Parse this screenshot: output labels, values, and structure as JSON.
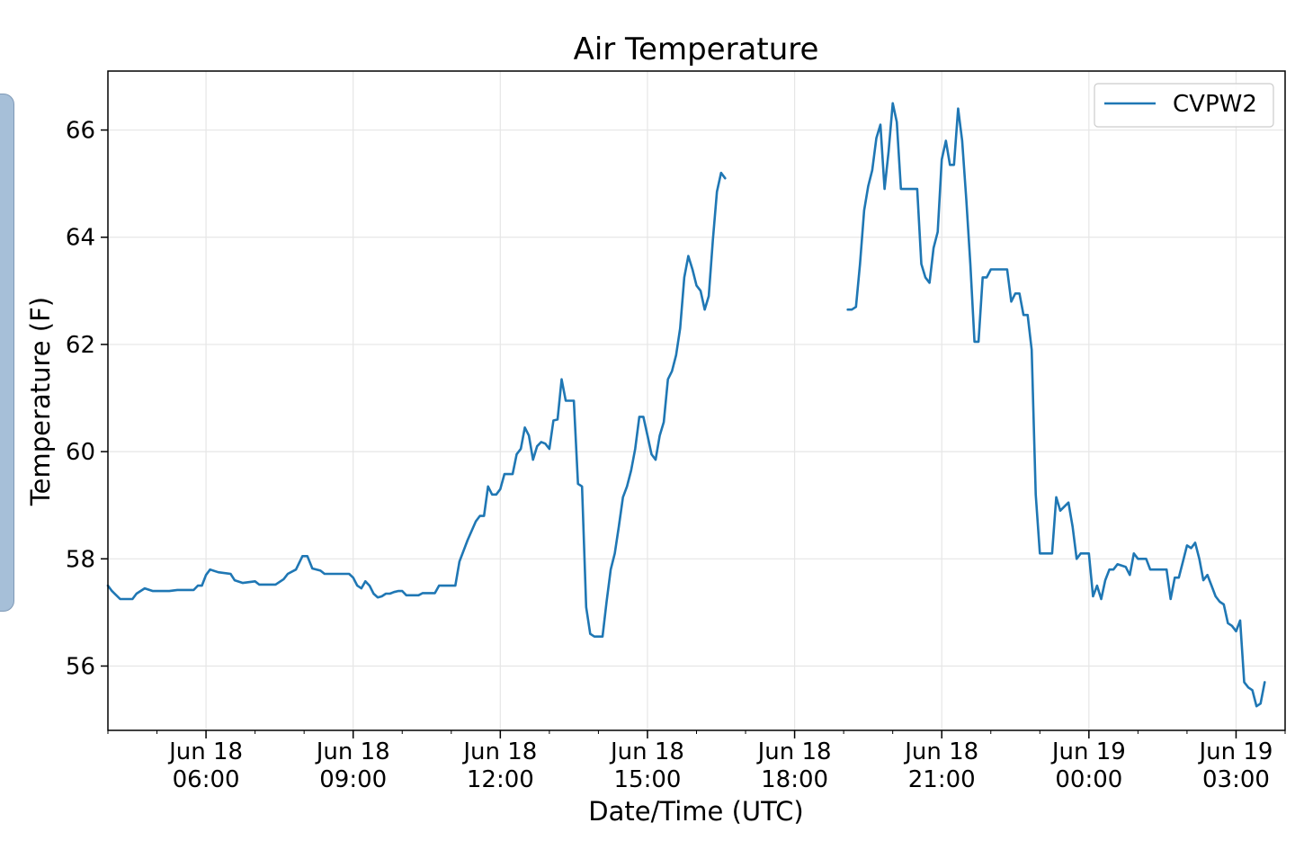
{
  "chart_data": {
    "type": "line",
    "title": "Air Temperature",
    "xlabel": "Date/Time (UTC)",
    "ylabel": "Temperature (F)",
    "x_range": [
      "2018-06-18T04:00",
      "2018-06-19T04:00"
    ],
    "ylim": [
      54.8,
      67.1
    ],
    "grid": true,
    "legend": {
      "position": "top-right",
      "entries": [
        "CVPW2"
      ]
    },
    "y_ticks": [
      "56",
      "58",
      "60",
      "62",
      "64",
      "66"
    ],
    "x_ticks": [
      {
        "line1": "Jun 18",
        "line2": "06:00"
      },
      {
        "line1": "Jun 18",
        "line2": "09:00"
      },
      {
        "line1": "Jun 18",
        "line2": "12:00"
      },
      {
        "line1": "Jun 18",
        "line2": "15:00"
      },
      {
        "line1": "Jun 18",
        "line2": "18:00"
      },
      {
        "line1": "Jun 18",
        "line2": "21:00"
      },
      {
        "line1": "Jun 19",
        "line2": "00:00"
      },
      {
        "line1": "Jun 19",
        "line2": "03:00"
      }
    ],
    "series": [
      {
        "name": "CVPW2",
        "color": "#1f77b4",
        "segments": [
          [
            [
              "2018-06-18T04:00",
              57.5
            ],
            [
              "2018-06-18T04:05",
              57.4
            ],
            [
              "2018-06-18T04:15",
              57.25
            ],
            [
              "2018-06-18T04:30",
              57.25
            ],
            [
              "2018-06-18T04:35",
              57.35
            ],
            [
              "2018-06-18T04:45",
              57.45
            ],
            [
              "2018-06-18T04:55",
              57.4
            ],
            [
              "2018-06-18T05:15",
              57.4
            ],
            [
              "2018-06-18T05:25",
              57.42
            ],
            [
              "2018-06-18T05:45",
              57.42
            ],
            [
              "2018-06-18T05:50",
              57.5
            ],
            [
              "2018-06-18T05:55",
              57.5
            ],
            [
              "2018-06-18T06:00",
              57.7
            ],
            [
              "2018-06-18T06:05",
              57.8
            ],
            [
              "2018-06-18T06:15",
              57.75
            ],
            [
              "2018-06-18T06:30",
              57.72
            ],
            [
              "2018-06-18T06:35",
              57.6
            ],
            [
              "2018-06-18T06:45",
              57.55
            ],
            [
              "2018-06-18T07:00",
              57.58
            ],
            [
              "2018-06-18T07:05",
              57.52
            ],
            [
              "2018-06-18T07:25",
              57.52
            ],
            [
              "2018-06-18T07:35",
              57.62
            ],
            [
              "2018-06-18T07:40",
              57.72
            ],
            [
              "2018-06-18T07:50",
              57.8
            ],
            [
              "2018-06-18T07:58",
              58.05
            ],
            [
              "2018-06-18T08:04",
              58.05
            ],
            [
              "2018-06-18T08:10",
              57.82
            ],
            [
              "2018-06-18T08:20",
              57.78
            ],
            [
              "2018-06-18T08:25",
              57.72
            ],
            [
              "2018-06-18T08:55",
              57.72
            ],
            [
              "2018-06-18T09:00",
              57.65
            ],
            [
              "2018-06-18T09:05",
              57.5
            ],
            [
              "2018-06-18T09:10",
              57.45
            ],
            [
              "2018-06-18T09:15",
              57.58
            ],
            [
              "2018-06-18T09:20",
              57.5
            ],
            [
              "2018-06-18T09:25",
              57.35
            ],
            [
              "2018-06-18T09:30",
              57.28
            ],
            [
              "2018-06-18T09:35",
              57.3
            ],
            [
              "2018-06-18T09:40",
              57.35
            ],
            [
              "2018-06-18T09:45",
              57.35
            ],
            [
              "2018-06-18T09:50",
              57.38
            ],
            [
              "2018-06-18T09:55",
              57.4
            ],
            [
              "2018-06-18T10:00",
              57.4
            ],
            [
              "2018-06-18T10:05",
              57.32
            ],
            [
              "2018-06-18T10:20",
              57.32
            ],
            [
              "2018-06-18T10:25",
              57.36
            ],
            [
              "2018-06-18T10:40",
              57.36
            ],
            [
              "2018-06-18T10:45",
              57.5
            ],
            [
              "2018-06-18T11:05",
              57.5
            ],
            [
              "2018-06-18T11:10",
              57.95
            ],
            [
              "2018-06-18T11:20",
              58.35
            ],
            [
              "2018-06-18T11:30",
              58.7
            ],
            [
              "2018-06-18T11:35",
              58.8
            ],
            [
              "2018-06-18T11:40",
              58.8
            ],
            [
              "2018-06-18T11:45",
              59.35
            ],
            [
              "2018-06-18T11:50",
              59.2
            ],
            [
              "2018-06-18T11:55",
              59.2
            ],
            [
              "2018-06-18T12:00",
              59.3
            ],
            [
              "2018-06-18T12:05",
              59.58
            ],
            [
              "2018-06-18T12:15",
              59.58
            ],
            [
              "2018-06-18T12:20",
              59.95
            ],
            [
              "2018-06-18T12:25",
              60.05
            ],
            [
              "2018-06-18T12:30",
              60.45
            ],
            [
              "2018-06-18T12:35",
              60.3
            ],
            [
              "2018-06-18T12:40",
              59.85
            ],
            [
              "2018-06-18T12:45",
              60.1
            ],
            [
              "2018-06-18T12:50",
              60.18
            ],
            [
              "2018-06-18T12:55",
              60.15
            ],
            [
              "2018-06-18T13:00",
              60.05
            ],
            [
              "2018-06-18T13:05",
              60.58
            ],
            [
              "2018-06-18T13:10",
              60.6
            ],
            [
              "2018-06-18T13:15",
              61.35
            ],
            [
              "2018-06-18T13:20",
              60.95
            ],
            [
              "2018-06-18T13:25",
              60.95
            ],
            [
              "2018-06-18T13:30",
              60.95
            ],
            [
              "2018-06-18T13:35",
              59.4
            ],
            [
              "2018-06-18T13:40",
              59.35
            ],
            [
              "2018-06-18T13:45",
              57.1
            ],
            [
              "2018-06-18T13:50",
              56.6
            ],
            [
              "2018-06-18T13:55",
              56.55
            ],
            [
              "2018-06-18T14:05",
              56.55
            ],
            [
              "2018-06-18T14:10",
              57.2
            ],
            [
              "2018-06-18T14:15",
              57.8
            ],
            [
              "2018-06-18T14:20",
              58.1
            ],
            [
              "2018-06-18T14:25",
              58.6
            ],
            [
              "2018-06-18T14:30",
              59.15
            ],
            [
              "2018-06-18T14:35",
              59.35
            ],
            [
              "2018-06-18T14:40",
              59.65
            ],
            [
              "2018-06-18T14:45",
              60.05
            ],
            [
              "2018-06-18T14:50",
              60.65
            ],
            [
              "2018-06-18T14:55",
              60.65
            ],
            [
              "2018-06-18T15:00",
              60.3
            ],
            [
              "2018-06-18T15:05",
              59.95
            ],
            [
              "2018-06-18T15:10",
              59.85
            ],
            [
              "2018-06-18T15:15",
              60.3
            ],
            [
              "2018-06-18T15:20",
              60.55
            ],
            [
              "2018-06-18T15:25",
              61.35
            ],
            [
              "2018-06-18T15:30",
              61.5
            ],
            [
              "2018-06-18T15:35",
              61.8
            ],
            [
              "2018-06-18T15:40",
              62.3
            ],
            [
              "2018-06-18T15:45",
              63.25
            ],
            [
              "2018-06-18T15:50",
              63.65
            ],
            [
              "2018-06-18T15:55",
              63.4
            ],
            [
              "2018-06-18T16:00",
              63.1
            ],
            [
              "2018-06-18T16:05",
              63.0
            ],
            [
              "2018-06-18T16:10",
              62.65
            ],
            [
              "2018-06-18T16:15",
              62.9
            ],
            [
              "2018-06-18T16:20",
              63.95
            ],
            [
              "2018-06-18T16:25",
              64.85
            ],
            [
              "2018-06-18T16:30",
              65.2
            ],
            [
              "2018-06-18T16:35",
              65.1
            ]
          ],
          [
            [
              "2018-06-18T19:05",
              62.65
            ],
            [
              "2018-06-18T19:10",
              62.65
            ],
            [
              "2018-06-18T19:15",
              62.7
            ],
            [
              "2018-06-18T19:20",
              63.5
            ],
            [
              "2018-06-18T19:25",
              64.5
            ],
            [
              "2018-06-18T19:30",
              64.95
            ],
            [
              "2018-06-18T19:35",
              65.25
            ],
            [
              "2018-06-18T19:40",
              65.85
            ],
            [
              "2018-06-18T19:45",
              66.1
            ],
            [
              "2018-06-18T19:50",
              64.9
            ],
            [
              "2018-06-18T19:55",
              65.6
            ],
            [
              "2018-06-18T20:00",
              66.5
            ],
            [
              "2018-06-18T20:05",
              66.15
            ],
            [
              "2018-06-18T20:10",
              64.9
            ],
            [
              "2018-06-18T20:30",
              64.9
            ],
            [
              "2018-06-18T20:35",
              63.5
            ],
            [
              "2018-06-18T20:40",
              63.25
            ],
            [
              "2018-06-18T20:45",
              63.15
            ],
            [
              "2018-06-18T20:50",
              63.8
            ],
            [
              "2018-06-18T20:55",
              64.1
            ],
            [
              "2018-06-18T21:00",
              65.45
            ],
            [
              "2018-06-18T21:05",
              65.8
            ],
            [
              "2018-06-18T21:10",
              65.35
            ],
            [
              "2018-06-18T21:15",
              65.35
            ],
            [
              "2018-06-18T21:20",
              66.4
            ],
            [
              "2018-06-18T21:25",
              65.8
            ],
            [
              "2018-06-18T21:30",
              64.7
            ],
            [
              "2018-06-18T21:35",
              63.5
            ],
            [
              "2018-06-18T21:40",
              62.05
            ],
            [
              "2018-06-18T21:45",
              62.05
            ],
            [
              "2018-06-18T21:50",
              63.25
            ],
            [
              "2018-06-18T21:55",
              63.25
            ],
            [
              "2018-06-18T22:00",
              63.4
            ],
            [
              "2018-06-18T22:20",
              63.4
            ],
            [
              "2018-06-18T22:25",
              62.8
            ],
            [
              "2018-06-18T22:30",
              62.95
            ],
            [
              "2018-06-18T22:35",
              62.95
            ],
            [
              "2018-06-18T22:40",
              62.55
            ],
            [
              "2018-06-18T22:45",
              62.55
            ],
            [
              "2018-06-18T22:50",
              61.9
            ],
            [
              "2018-06-18T22:55",
              59.2
            ],
            [
              "2018-06-18T23:00",
              58.1
            ],
            [
              "2018-06-18T23:15",
              58.1
            ],
            [
              "2018-06-18T23:20",
              59.15
            ],
            [
              "2018-06-18T23:25",
              58.9
            ],
            [
              "2018-06-18T23:35",
              59.05
            ],
            [
              "2018-06-18T23:40",
              58.6
            ],
            [
              "2018-06-18T23:45",
              58.0
            ],
            [
              "2018-06-18T23:50",
              58.1
            ],
            [
              "2018-06-19T00:00",
              58.1
            ],
            [
              "2018-06-19T00:05",
              57.3
            ],
            [
              "2018-06-19T00:10",
              57.5
            ],
            [
              "2018-06-19T00:15",
              57.25
            ],
            [
              "2018-06-19T00:20",
              57.6
            ],
            [
              "2018-06-19T00:25",
              57.8
            ],
            [
              "2018-06-19T00:30",
              57.8
            ],
            [
              "2018-06-19T00:35",
              57.9
            ],
            [
              "2018-06-19T00:45",
              57.85
            ],
            [
              "2018-06-19T00:50",
              57.7
            ],
            [
              "2018-06-19T00:55",
              58.1
            ],
            [
              "2018-06-19T01:00",
              58.0
            ],
            [
              "2018-06-19T01:10",
              58.0
            ],
            [
              "2018-06-19T01:15",
              57.8
            ],
            [
              "2018-06-19T01:35",
              57.8
            ],
            [
              "2018-06-19T01:40",
              57.25
            ],
            [
              "2018-06-19T01:45",
              57.65
            ],
            [
              "2018-06-19T01:50",
              57.65
            ],
            [
              "2018-06-19T01:55",
              57.95
            ],
            [
              "2018-06-19T02:00",
              58.25
            ],
            [
              "2018-06-19T02:05",
              58.2
            ],
            [
              "2018-06-19T02:10",
              58.3
            ],
            [
              "2018-06-19T02:15",
              58.0
            ],
            [
              "2018-06-19T02:20",
              57.6
            ],
            [
              "2018-06-19T02:25",
              57.7
            ],
            [
              "2018-06-19T02:30",
              57.5
            ],
            [
              "2018-06-19T02:35",
              57.3
            ],
            [
              "2018-06-19T02:40",
              57.2
            ],
            [
              "2018-06-19T02:45",
              57.15
            ],
            [
              "2018-06-19T02:50",
              56.8
            ],
            [
              "2018-06-19T02:55",
              56.75
            ],
            [
              "2018-06-19T03:00",
              56.65
            ],
            [
              "2018-06-19T03:05",
              56.85
            ],
            [
              "2018-06-19T03:10",
              55.7
            ],
            [
              "2018-06-19T03:15",
              55.6
            ],
            [
              "2018-06-19T03:20",
              55.55
            ],
            [
              "2018-06-19T03:25",
              55.25
            ],
            [
              "2018-06-19T03:30",
              55.3
            ],
            [
              "2018-06-19T03:35",
              55.7
            ]
          ]
        ]
      }
    ]
  }
}
